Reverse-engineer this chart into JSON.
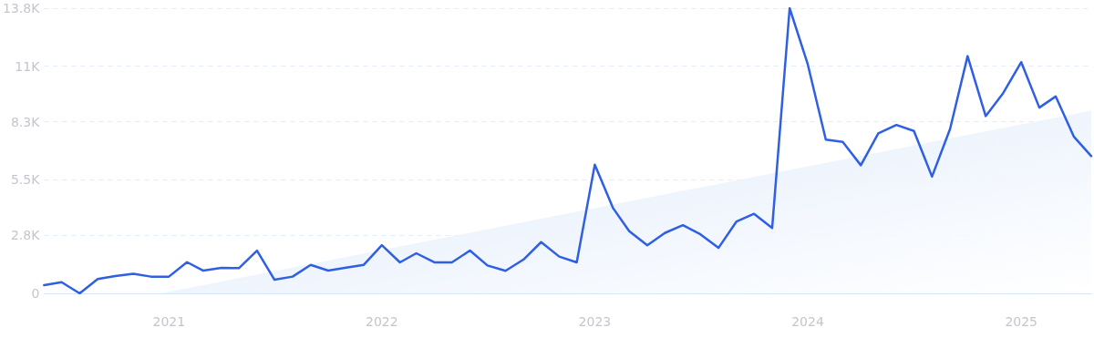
{
  "chart_data": {
    "type": "line",
    "x": [
      "2020-06",
      "2020-07",
      "2020-08",
      "2020-09",
      "2020-10",
      "2020-11",
      "2020-12",
      "2021-01",
      "2021-02",
      "2021-03",
      "2021-04",
      "2021-05",
      "2021-06",
      "2021-07",
      "2021-08",
      "2021-09",
      "2021-10",
      "2021-11",
      "2021-12",
      "2022-01",
      "2022-02",
      "2022-03",
      "2022-04",
      "2022-05",
      "2022-06",
      "2022-07",
      "2022-08",
      "2022-09",
      "2022-10",
      "2022-11",
      "2022-12",
      "2023-01",
      "2023-02",
      "2023-03",
      "2023-04",
      "2023-05",
      "2023-06",
      "2023-07",
      "2023-08",
      "2023-09",
      "2023-10",
      "2023-11",
      "2023-12",
      "2024-01",
      "2024-02",
      "2024-03",
      "2024-04",
      "2024-05",
      "2024-06",
      "2024-07",
      "2024-08",
      "2024-09",
      "2024-10",
      "2024-11",
      "2024-12",
      "2025-01",
      "2025-02",
      "2025-03",
      "2025-04",
      "2025-05"
    ],
    "series": [
      {
        "type": "area",
        "color": "#dbe8fb",
        "x": [
          "2020-12-19",
          "2025-05"
        ],
        "values": [
          0,
          8840
        ]
      },
      {
        "color": "#2f5fe3",
        "values": [
          400,
          540,
          0,
          690,
          840,
          950,
          810,
          810,
          1510,
          1100,
          1230,
          1220,
          2070,
          660,
          810,
          1380,
          1100,
          1250,
          1380,
          2330,
          1500,
          1940,
          1500,
          1500,
          2070,
          1350,
          1090,
          1640,
          2480,
          1780,
          1500,
          6230,
          4140,
          3010,
          2330,
          2920,
          3300,
          2860,
          2200,
          3480,
          3850,
          3160,
          13800,
          11090,
          7440,
          7330,
          6200,
          7740,
          8150,
          7860,
          5650,
          7960,
          11480,
          8580,
          9690,
          11190,
          8990,
          9530,
          7590,
          6640
        ]
      }
    ],
    "xlim": [
      "2020-06",
      "2025-05"
    ],
    "xticks": [
      {
        "value": "2021",
        "label": "2021"
      },
      {
        "value": "2022",
        "label": "2022"
      },
      {
        "value": "2023",
        "label": "2023"
      },
      {
        "value": "2024",
        "label": "2024"
      },
      {
        "value": "2025",
        "label": "2025"
      }
    ],
    "ylim": [
      0,
      13800
    ],
    "yticks": [
      0,
      {
        "value": 2800,
        "label": "2.8K"
      },
      {
        "value": 5500,
        "label": "5.5K"
      },
      {
        "value": 8300,
        "label": "8.3K"
      },
      {
        "value": 11000,
        "label": "11K"
      },
      {
        "value": 13800,
        "label": "13.8K"
      }
    ],
    "grid": "y",
    "marker": "none",
    "line_style": "solid"
  }
}
